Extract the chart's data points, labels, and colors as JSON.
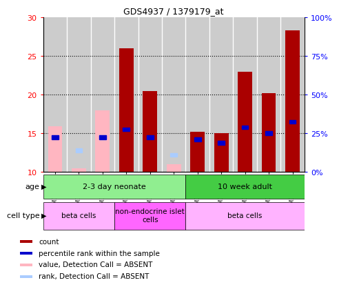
{
  "title": "GDS4937 / 1379179_at",
  "samples": [
    "GSM1146031",
    "GSM1146032",
    "GSM1146033",
    "GSM1146034",
    "GSM1146035",
    "GSM1146036",
    "GSM1146026",
    "GSM1146027",
    "GSM1146028",
    "GSM1146029",
    "GSM1146030"
  ],
  "count_values": [
    null,
    null,
    null,
    26.0,
    20.5,
    null,
    15.2,
    15.0,
    23.0,
    20.2,
    28.3
  ],
  "count_absent": [
    15.9,
    10.5,
    18.0,
    null,
    null,
    11.0,
    null,
    null,
    null,
    null,
    null
  ],
  "rank_values": [
    14.5,
    null,
    14.5,
    15.5,
    14.5,
    null,
    14.2,
    13.8,
    15.8,
    15.0,
    16.5
  ],
  "rank_absent": [
    null,
    12.8,
    14.5,
    null,
    null,
    12.2,
    null,
    null,
    null,
    null,
    null
  ],
  "ylim_left": [
    10,
    30
  ],
  "ylim_right": [
    0,
    100
  ],
  "yticks_left": [
    10,
    15,
    20,
    25,
    30
  ],
  "yticks_right": [
    0,
    25,
    50,
    75,
    100
  ],
  "ytick_labels_right": [
    "0%",
    "25%",
    "50%",
    "75%",
    "100%"
  ],
  "age_groups": [
    {
      "label": "2-3 day neonate",
      "start": 0,
      "end": 6,
      "color": "#90EE90"
    },
    {
      "label": "10 week adult",
      "start": 6,
      "end": 11,
      "color": "#44CC44"
    }
  ],
  "cell_type_groups": [
    {
      "label": "beta cells",
      "start": 0,
      "end": 3,
      "color": "#FFB3FF"
    },
    {
      "label": "non-endocrine islet\ncells",
      "start": 3,
      "end": 6,
      "color": "#FF66FF"
    },
    {
      "label": "beta cells",
      "start": 6,
      "end": 11,
      "color": "#FFB3FF"
    }
  ],
  "bar_color": "#AA0000",
  "bar_absent_color": "#FFB6C1",
  "rank_color": "#0000CC",
  "rank_absent_color": "#AACCFF",
  "grid_color": "#888888",
  "col_bg_color": "#CCCCCC",
  "plot_bg": "#FFFFFF"
}
